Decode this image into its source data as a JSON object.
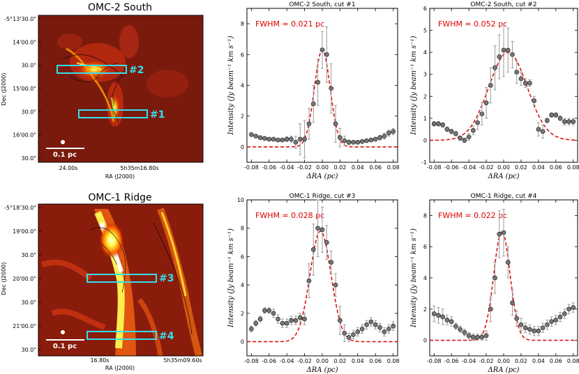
{
  "maps": [
    {
      "title": "OMC-2 South",
      "ylabel": "Dec (J2000)",
      "xlabel": "RA (J2000)",
      "yticks": [
        "-5°13'30.0\"",
        "14'00.0\"",
        "30.0\"",
        "15'00.0\"",
        "30.0\"",
        "16'00.0\"",
        "30.0\""
      ],
      "xticks": [
        "24.00s",
        "5h35m16.80s"
      ],
      "scalebar": "0.1 pc",
      "boxes": [
        "#2",
        "#1"
      ]
    },
    {
      "title": "OMC-1 Ridge",
      "ylabel": "Dec (J2000)",
      "xlabel": "RA (J2000)",
      "yticks": [
        "-5°18'30.0\"",
        "19'00.0\"",
        "30.0\"",
        "20'00.0\"",
        "30.0\"",
        "21'00.0\"",
        "30.0\""
      ],
      "xticks": [
        "16.80s",
        "5h35m09.60s"
      ],
      "scalebar": "0.1 pc",
      "boxes": [
        "#3",
        "#4"
      ]
    }
  ],
  "chart_data": [
    {
      "type": "scatter",
      "title": "OMC-2 South, cut #1",
      "fwhm_label": "FWHM = 0.021 pc",
      "xlabel": "ΔRA (pc)",
      "ylabel": "Intensity (Jy beam⁻¹ km s⁻¹)",
      "xlim": [
        -0.085,
        0.085
      ],
      "ylim": [
        -1,
        9
      ],
      "xticks": [
        -0.08,
        -0.06,
        -0.04,
        -0.02,
        0.0,
        0.02,
        0.04,
        0.06,
        0.08
      ],
      "yticks": [
        0,
        2,
        4,
        6,
        8
      ],
      "gauss": {
        "amp": 6.3,
        "center": 0.0,
        "fwhm": 0.021
      },
      "points": [
        [
          -0.08,
          0.8
        ],
        [
          -0.075,
          0.7
        ],
        [
          -0.07,
          0.6
        ],
        [
          -0.065,
          0.55
        ],
        [
          -0.06,
          0.5
        ],
        [
          -0.055,
          0.5
        ],
        [
          -0.05,
          0.45
        ],
        [
          -0.045,
          0.45
        ],
        [
          -0.04,
          0.5
        ],
        [
          -0.035,
          0.5
        ],
        [
          -0.03,
          0.3
        ],
        [
          -0.025,
          0.5
        ],
        [
          -0.02,
          0.5
        ],
        [
          -0.015,
          1.5
        ],
        [
          -0.01,
          2.8
        ],
        [
          -0.005,
          4.2
        ],
        [
          0.0,
          6.3
        ],
        [
          0.005,
          6.0
        ],
        [
          0.01,
          3.8
        ],
        [
          0.015,
          1.5
        ],
        [
          0.02,
          0.6
        ],
        [
          0.025,
          0.4
        ],
        [
          0.03,
          0.3
        ],
        [
          0.035,
          0.3
        ],
        [
          0.04,
          0.3
        ],
        [
          0.045,
          0.35
        ],
        [
          0.05,
          0.4
        ],
        [
          0.055,
          0.45
        ],
        [
          0.06,
          0.5
        ],
        [
          0.065,
          0.6
        ],
        [
          0.07,
          0.7
        ],
        [
          0.075,
          0.9
        ],
        [
          0.08,
          1.0
        ]
      ],
      "errors": [
        0.1,
        0.1,
        0.1,
        0.1,
        0.1,
        0.1,
        0.1,
        0.1,
        0.15,
        0.2,
        0.4,
        1.0,
        1.2,
        1.0,
        1.2,
        1.5,
        1.2,
        1.8,
        1.6,
        1.2,
        0.6,
        0.3,
        0.15,
        0.1,
        0.1,
        0.1,
        0.1,
        0.1,
        0.1,
        0.15,
        0.2,
        0.2,
        0.2
      ]
    },
    {
      "type": "scatter",
      "title": "OMC-2 South, cut #2",
      "fwhm_label": "FWHM = 0.052 pc",
      "xlabel": "ΔRA (pc)",
      "ylabel": "Intensity (Jy beam⁻¹ km s⁻¹)",
      "xlim": [
        -0.085,
        0.085
      ],
      "ylim": [
        -1,
        6
      ],
      "xticks": [
        -0.08,
        -0.06,
        -0.04,
        -0.02,
        0.0,
        0.02,
        0.04,
        0.06,
        0.08
      ],
      "yticks": [
        -1,
        0,
        1,
        2,
        3,
        4,
        5,
        6
      ],
      "gauss": {
        "amp": 4.0,
        "center": 0.005,
        "fwhm": 0.052
      },
      "points": [
        [
          -0.08,
          0.75
        ],
        [
          -0.075,
          0.75
        ],
        [
          -0.07,
          0.7
        ],
        [
          -0.065,
          0.5
        ],
        [
          -0.06,
          0.4
        ],
        [
          -0.055,
          0.3
        ],
        [
          -0.05,
          0.1
        ],
        [
          -0.045,
          0.0
        ],
        [
          -0.04,
          0.15
        ],
        [
          -0.035,
          0.45
        ],
        [
          -0.03,
          0.8
        ],
        [
          -0.025,
          1.2
        ],
        [
          -0.02,
          1.7
        ],
        [
          -0.015,
          2.5
        ],
        [
          -0.01,
          3.3
        ],
        [
          -0.005,
          3.8
        ],
        [
          0.0,
          4.1
        ],
        [
          0.005,
          4.1
        ],
        [
          0.01,
          3.9
        ],
        [
          0.015,
          3.1
        ],
        [
          0.02,
          2.8
        ],
        [
          0.025,
          2.6
        ],
        [
          0.03,
          2.6
        ],
        [
          0.035,
          1.8
        ],
        [
          0.04,
          0.5
        ],
        [
          0.045,
          0.4
        ],
        [
          0.05,
          0.9
        ],
        [
          0.055,
          1.15
        ],
        [
          0.06,
          1.15
        ],
        [
          0.065,
          1.0
        ],
        [
          0.07,
          0.85
        ],
        [
          0.075,
          0.85
        ],
        [
          0.08,
          0.85
        ]
      ],
      "errors": [
        0.1,
        0.1,
        0.1,
        0.1,
        0.1,
        0.1,
        0.1,
        0.1,
        0.15,
        0.2,
        0.3,
        0.5,
        0.7,
        0.8,
        1.0,
        1.0,
        1.2,
        1.0,
        0.6,
        0.5,
        0.3,
        0.2,
        0.15,
        0.2,
        0.3,
        0.3,
        0.1,
        0.1,
        0.1,
        0.1,
        0.15,
        0.15,
        0.15
      ]
    },
    {
      "type": "scatter",
      "title": "OMC-1 Ridge, cut #3",
      "fwhm_label": "FWHM = 0.028 pc",
      "xlabel": "ΔRA (pc)",
      "ylabel": "Intensity (Jy beam⁻¹ km s⁻¹)",
      "xlim": [
        -0.085,
        0.085
      ],
      "ylim": [
        -1,
        10
      ],
      "xticks": [
        -0.08,
        -0.06,
        -0.04,
        -0.02,
        0.0,
        0.02,
        0.04,
        0.06,
        0.08
      ],
      "yticks": [
        0,
        2,
        4,
        6,
        8,
        10
      ],
      "gauss": {
        "amp": 7.8,
        "center": -0.002,
        "fwhm": 0.028
      },
      "points": [
        [
          -0.08,
          0.9
        ],
        [
          -0.075,
          1.3
        ],
        [
          -0.07,
          1.6
        ],
        [
          -0.065,
          2.2
        ],
        [
          -0.06,
          2.2
        ],
        [
          -0.055,
          2.0
        ],
        [
          -0.05,
          1.6
        ],
        [
          -0.045,
          1.3
        ],
        [
          -0.04,
          1.3
        ],
        [
          -0.035,
          1.5
        ],
        [
          -0.03,
          1.5
        ],
        [
          -0.025,
          1.7
        ],
        [
          -0.02,
          1.6
        ],
        [
          -0.015,
          4.3
        ],
        [
          -0.01,
          6.5
        ],
        [
          -0.005,
          8.0
        ],
        [
          0.0,
          7.9
        ],
        [
          0.005,
          7.0
        ],
        [
          0.01,
          5.6
        ],
        [
          0.015,
          4.0
        ],
        [
          0.02,
          1.5
        ],
        [
          0.025,
          0.6
        ],
        [
          0.03,
          0.3
        ],
        [
          0.035,
          0.5
        ],
        [
          0.04,
          0.7
        ],
        [
          0.045,
          0.9
        ],
        [
          0.05,
          1.2
        ],
        [
          0.055,
          1.4
        ],
        [
          0.06,
          1.2
        ],
        [
          0.065,
          1.0
        ],
        [
          0.07,
          0.7
        ],
        [
          0.075,
          0.9
        ],
        [
          0.08,
          1.1
        ]
      ],
      "errors": [
        0.2,
        0.2,
        0.2,
        0.2,
        0.2,
        0.3,
        0.3,
        0.3,
        0.3,
        0.3,
        0.3,
        0.3,
        0.4,
        1.2,
        1.8,
        2.0,
        1.6,
        1.2,
        0.8,
        0.8,
        1.0,
        0.6,
        0.3,
        0.3,
        0.3,
        0.3,
        0.3,
        0.3,
        0.3,
        0.3,
        0.3,
        0.3,
        0.3
      ]
    },
    {
      "type": "scatter",
      "title": "OMC-1 Ridge, cut #4",
      "fwhm_label": "FWHM = 0.022 pc",
      "xlabel": "ΔRA (pc)",
      "ylabel": "Intensity (Jy beam⁻¹ km s⁻¹)",
      "xlim": [
        -0.085,
        0.085
      ],
      "ylim": [
        -1,
        9
      ],
      "xticks": [
        -0.08,
        -0.06,
        -0.04,
        -0.02,
        0.0,
        0.02,
        0.04,
        0.06,
        0.08
      ],
      "yticks": [
        0,
        2,
        4,
        6,
        8
      ],
      "gauss": {
        "amp": 7.0,
        "center": -0.002,
        "fwhm": 0.022
      },
      "points": [
        [
          -0.08,
          1.7
        ],
        [
          -0.075,
          1.6
        ],
        [
          -0.07,
          1.5
        ],
        [
          -0.065,
          1.3
        ],
        [
          -0.06,
          1.2
        ],
        [
          -0.055,
          0.9
        ],
        [
          -0.05,
          0.7
        ],
        [
          -0.045,
          0.5
        ],
        [
          -0.04,
          0.3
        ],
        [
          -0.035,
          0.2
        ],
        [
          -0.03,
          0.2
        ],
        [
          -0.025,
          0.2
        ],
        [
          -0.02,
          0.3
        ],
        [
          -0.015,
          2.0
        ],
        [
          -0.01,
          4.0
        ],
        [
          -0.005,
          6.8
        ],
        [
          0.0,
          6.9
        ],
        [
          0.005,
          5.0
        ],
        [
          0.01,
          2.4
        ],
        [
          0.015,
          1.4
        ],
        [
          0.02,
          1.0
        ],
        [
          0.025,
          0.8
        ],
        [
          0.03,
          0.7
        ],
        [
          0.035,
          0.6
        ],
        [
          0.04,
          0.6
        ],
        [
          0.045,
          0.8
        ],
        [
          0.05,
          1.0
        ],
        [
          0.055,
          1.2
        ],
        [
          0.06,
          1.3
        ],
        [
          0.065,
          1.5
        ],
        [
          0.07,
          1.7
        ],
        [
          0.075,
          2.0
        ],
        [
          0.08,
          2.1
        ]
      ],
      "errors": [
        0.5,
        0.5,
        0.5,
        0.3,
        0.3,
        0.2,
        0.2,
        0.2,
        0.2,
        0.2,
        0.2,
        0.2,
        0.3,
        0.8,
        1.0,
        1.5,
        1.5,
        1.0,
        0.8,
        0.5,
        0.4,
        0.3,
        0.3,
        0.3,
        0.3,
        0.3,
        0.3,
        0.3,
        0.3,
        0.3,
        0.3,
        0.3,
        0.3
      ]
    }
  ]
}
